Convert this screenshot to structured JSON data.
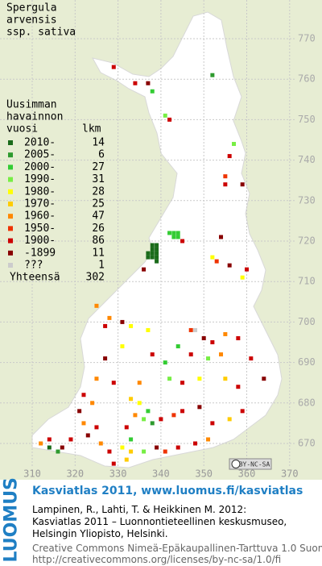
{
  "title": [
    "Spergula",
    "arvensis",
    "ssp. sativa"
  ],
  "legend": {
    "heading": [
      "Uusimman",
      "havainnon",
      "vuosi"
    ],
    "count_heading": "lkm",
    "items": [
      {
        "label": "2010-",
        "count": 14,
        "color": "#1a6b1a"
      },
      {
        "label": "2005-",
        "count": 6,
        "color": "#2e9a2e"
      },
      {
        "label": "2000-",
        "count": 27,
        "color": "#33cc33"
      },
      {
        "label": "1990-",
        "count": 31,
        "color": "#77ee44"
      },
      {
        "label": "1980-",
        "count": 28,
        "color": "#ffff00"
      },
      {
        "label": "1970-",
        "count": 25,
        "color": "#ffcc00"
      },
      {
        "label": "1960-",
        "count": 47,
        "color": "#ff8800"
      },
      {
        "label": "1950-",
        "count": 26,
        "color": "#ee3300"
      },
      {
        "label": "1900-",
        "count": 86,
        "color": "#cc0000"
      },
      {
        "label": "-1899",
        "count": 11,
        "color": "#880000"
      },
      {
        "label": "???",
        "count": 1,
        "color": "#cccccc"
      }
    ],
    "total_label": "Yhteensä",
    "total": 302
  },
  "xticks": [
    310,
    320,
    330,
    340,
    350,
    360,
    370
  ],
  "yticks": [
    670,
    680,
    690,
    700,
    710,
    720,
    730,
    740,
    750,
    760,
    770
  ],
  "squares": [
    [
      329,
      763,
      8
    ],
    [
      352,
      761,
      1
    ],
    [
      334,
      759,
      8
    ],
    [
      337,
      759,
      9
    ],
    [
      338,
      757,
      2
    ],
    [
      341,
      751,
      3
    ],
    [
      342,
      750,
      8
    ],
    [
      357,
      744,
      3
    ],
    [
      356,
      741,
      8
    ],
    [
      355,
      736,
      7
    ],
    [
      355,
      734,
      8
    ],
    [
      359,
      734,
      9
    ],
    [
      342,
      722,
      2
    ],
    [
      343,
      722,
      2
    ],
    [
      344,
      721,
      2
    ],
    [
      343,
      721,
      2
    ],
    [
      344,
      722,
      2
    ],
    [
      338,
      719,
      0
    ],
    [
      339,
      719,
      0
    ],
    [
      338,
      718,
      0
    ],
    [
      339,
      718,
      0
    ],
    [
      337,
      717,
      0
    ],
    [
      338,
      717,
      0
    ],
    [
      339,
      717,
      0
    ],
    [
      337,
      716,
      0
    ],
    [
      338,
      716,
      0
    ],
    [
      339,
      716,
      0
    ],
    [
      339,
      715,
      0
    ],
    [
      336,
      713,
      9
    ],
    [
      345,
      720,
      8
    ],
    [
      354,
      721,
      9
    ],
    [
      352,
      716,
      4
    ],
    [
      353,
      715,
      7
    ],
    [
      356,
      714,
      9
    ],
    [
      360,
      713,
      8
    ],
    [
      359,
      711,
      4
    ],
    [
      325,
      704,
      6
    ],
    [
      328,
      701,
      6
    ],
    [
      327,
      699,
      8
    ],
    [
      331,
      700,
      9
    ],
    [
      333,
      699,
      4
    ],
    [
      337,
      698,
      4
    ],
    [
      347,
      698,
      7
    ],
    [
      348,
      698,
      10
    ],
    [
      350,
      696,
      9
    ],
    [
      352,
      695,
      8
    ],
    [
      355,
      697,
      6
    ],
    [
      358,
      696,
      8
    ],
    [
      344,
      694,
      2
    ],
    [
      347,
      692,
      8
    ],
    [
      351,
      691,
      3
    ],
    [
      354,
      692,
      6
    ],
    [
      338,
      692,
      8
    ],
    [
      341,
      690,
      2
    ],
    [
      331,
      694,
      4
    ],
    [
      327,
      691,
      9
    ],
    [
      361,
      691,
      8
    ],
    [
      364,
      686,
      9
    ],
    [
      325,
      686,
      6
    ],
    [
      329,
      685,
      8
    ],
    [
      335,
      685,
      6
    ],
    [
      342,
      686,
      3
    ],
    [
      345,
      685,
      8
    ],
    [
      349,
      686,
      4
    ],
    [
      355,
      686,
      5
    ],
    [
      358,
      684,
      8
    ],
    [
      322,
      682,
      8
    ],
    [
      324,
      680,
      6
    ],
    [
      321,
      678,
      9
    ],
    [
      333,
      681,
      5
    ],
    [
      335,
      680,
      4
    ],
    [
      337,
      678,
      2
    ],
    [
      336,
      676,
      3
    ],
    [
      334,
      677,
      6
    ],
    [
      338,
      675,
      1
    ],
    [
      340,
      676,
      8
    ],
    [
      343,
      677,
      7
    ],
    [
      345,
      678,
      8
    ],
    [
      349,
      679,
      9
    ],
    [
      352,
      675,
      8
    ],
    [
      356,
      676,
      5
    ],
    [
      359,
      678,
      8
    ],
    [
      314,
      671,
      8
    ],
    [
      312,
      670,
      6
    ],
    [
      317,
      669,
      9
    ],
    [
      314,
      669,
      0
    ],
    [
      316,
      668,
      1
    ],
    [
      319,
      671,
      8
    ],
    [
      323,
      672,
      9
    ],
    [
      326,
      670,
      6
    ],
    [
      328,
      668,
      8
    ],
    [
      331,
      669,
      4
    ],
    [
      333,
      668,
      5
    ],
    [
      336,
      668,
      3
    ],
    [
      339,
      669,
      9
    ],
    [
      341,
      668,
      7
    ],
    [
      344,
      669,
      8
    ],
    [
      348,
      670,
      8
    ],
    [
      351,
      671,
      6
    ],
    [
      329,
      665,
      8
    ],
    [
      332,
      666,
      5
    ],
    [
      325,
      674,
      8
    ],
    [
      322,
      675,
      6
    ],
    [
      332,
      674,
      8
    ],
    [
      333,
      671,
      2
    ]
  ],
  "badge": "BY-NC-SA",
  "footer": {
    "logo": "LUOMUS",
    "heading": "Kasviatlas 2011, www.luomus.fi/kasviatlas",
    "citation": [
      "Lampinen, R., Lahti, T. & Heikkinen M. 2012:",
      "Kasviatlas 2011 – Luonnontieteellinen keskusmuseo,",
      "Helsingin Yliopisto, Helsinki."
    ],
    "license": [
      "Creative Commons Nimeä-Epäkaupallinen-Tarttuva 1.0 Suomi",
      "http://creativecommons.org/licenses/by-nc-sa/1.0/fi"
    ]
  }
}
